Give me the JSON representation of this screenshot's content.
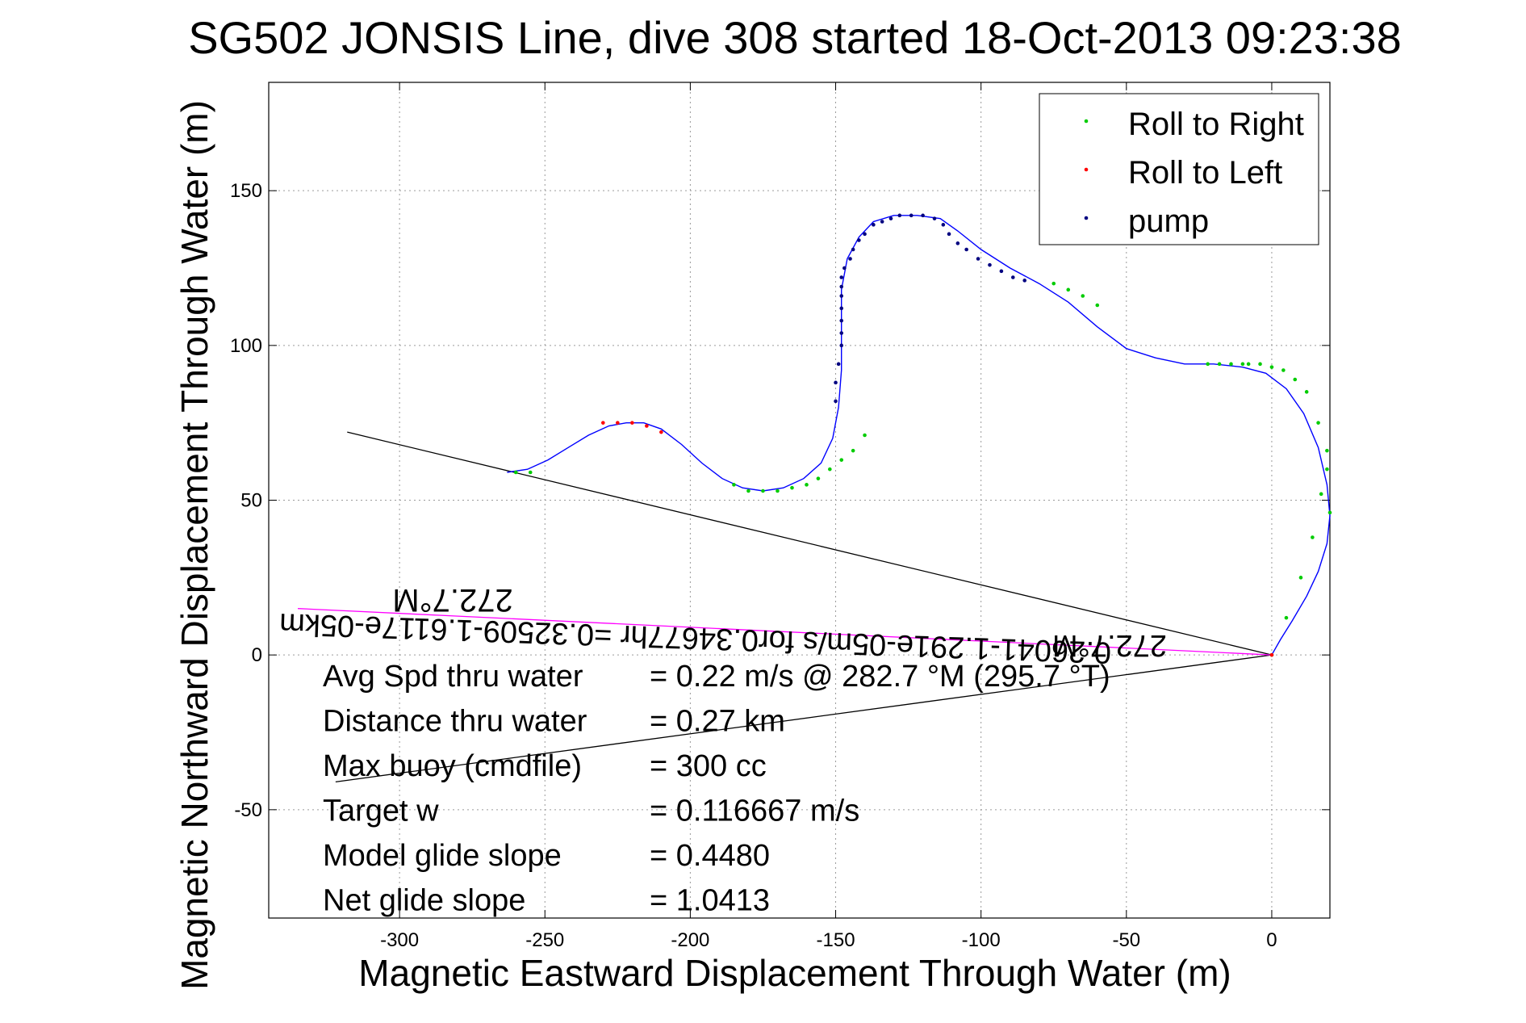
{
  "chart_data": {
    "type": "scatter",
    "title": "SG502 JONSIS Line, dive 308 started 18-Oct-2013 09:23:38",
    "xlabel": "Magnetic Eastward Displacement Through Water (m)",
    "ylabel": "Magnetic Northward Displacement Through Water (m)",
    "xlim": [
      -345,
      20
    ],
    "ylim": [
      -85,
      185
    ],
    "xticks": [
      -300,
      -250,
      -200,
      -150,
      -100,
      -50,
      0
    ],
    "yticks": [
      -50,
      0,
      50,
      100,
      150
    ],
    "grid": true,
    "legend_position": "top-right",
    "colors": {
      "roll_right": "#00cc00",
      "roll_left": "#ff0000",
      "pump": "#000080",
      "track": "#0000ff",
      "current_line": "#ff00ff",
      "heading_line": "#000000"
    },
    "series": [
      {
        "name": "Roll to Right",
        "x": [
          0,
          5,
          10,
          14,
          17,
          19,
          20,
          19,
          16,
          12,
          8,
          4,
          0,
          -4,
          -8,
          -10,
          -14,
          -18,
          -22,
          -60,
          -65,
          -70,
          -75,
          -140,
          -144,
          -148,
          -152,
          -156,
          -160,
          -165,
          -170,
          -175,
          -180,
          -185,
          -255,
          -260
        ],
        "y": [
          0,
          12,
          25,
          38,
          52,
          66,
          46,
          60,
          75,
          85,
          89,
          92,
          93,
          94,
          94,
          94,
          94,
          94,
          94,
          113,
          116,
          118,
          120,
          71,
          66,
          63,
          60,
          57,
          55,
          54,
          53,
          53,
          53,
          55,
          59,
          59
        ]
      },
      {
        "name": "Roll to Left",
        "x": [
          0,
          -210,
          -215,
          -220,
          -225,
          -230
        ],
        "y": [
          0,
          72,
          74,
          75,
          75,
          75
        ]
      },
      {
        "name": "pump",
        "x": [
          -150,
          -150,
          -149,
          -148,
          -148,
          -148,
          -148,
          -148,
          -148,
          -148,
          -147,
          -145,
          -144,
          -142,
          -140,
          -137,
          -134,
          -131,
          -128,
          -124,
          -120,
          -116,
          -113,
          -111,
          -108,
          -105,
          -101,
          -97,
          -93,
          -89,
          -85
        ],
        "y": [
          82,
          88,
          94,
          100,
          104,
          108,
          112,
          116,
          119,
          122,
          125,
          128,
          131,
          134,
          136,
          139,
          140,
          141,
          142,
          142,
          142,
          141,
          139,
          136,
          133,
          131,
          128,
          126,
          124,
          122,
          121
        ]
      }
    ],
    "track": {
      "x": [
        -263,
        -256,
        -249,
        -242,
        -235,
        -228,
        -222,
        -216,
        -210,
        -203,
        -196,
        -189,
        -182,
        -175,
        -168,
        -161,
        -155,
        -151,
        -149,
        -148,
        -148,
        -148,
        -146,
        -142,
        -137,
        -130,
        -122,
        -114,
        -108,
        -100,
        -90,
        -80,
        -70,
        -60,
        -50,
        -40,
        -30,
        -20,
        -10,
        -2,
        5,
        11,
        16,
        19,
        20,
        19,
        16,
        12,
        7,
        3,
        0
      ],
      "y": [
        59,
        60,
        63,
        67,
        71,
        74,
        75,
        75,
        73,
        68,
        62,
        57,
        54,
        53,
        54,
        57,
        62,
        70,
        80,
        92,
        105,
        118,
        128,
        135,
        140,
        142,
        142,
        141,
        137,
        131,
        125,
        120,
        114,
        106,
        99,
        96,
        94,
        94,
        93,
        91,
        86,
        78,
        67,
        55,
        45,
        36,
        27,
        19,
        11,
        5,
        0
      ]
    },
    "lines": [
      {
        "x": [
          -318,
          0
        ],
        "y": [
          72,
          0
        ]
      },
      {
        "x": [
          -322,
          0
        ],
        "y": [
          -41,
          0
        ]
      },
      {
        "x": [
          -335,
          0
        ],
        "y": [
          15,
          0
        ]
      }
    ],
    "inverted_annotations": [
      "272.7°M",
      "0.26041-1.291e-05m/s for0.34677hr =0.32509-1.6117e-05km",
      "272.7°M"
    ],
    "stats": [
      {
        "label": "Avg Spd thru water",
        "value": "=  0.22 m/s @ 282.7 °M (295.7 °T)"
      },
      {
        "label": "Distance thru water",
        "value": "=  0.27 km"
      },
      {
        "label": "Max buoy (cmdfile)",
        "value": "= 300 cc"
      },
      {
        "label": "Target w",
        "value": "= 0.116667 m/s"
      },
      {
        "label": "Model glide slope",
        "value": "= 0.4480"
      },
      {
        "label": "Net glide slope",
        "value": "= 1.0413"
      }
    ]
  }
}
